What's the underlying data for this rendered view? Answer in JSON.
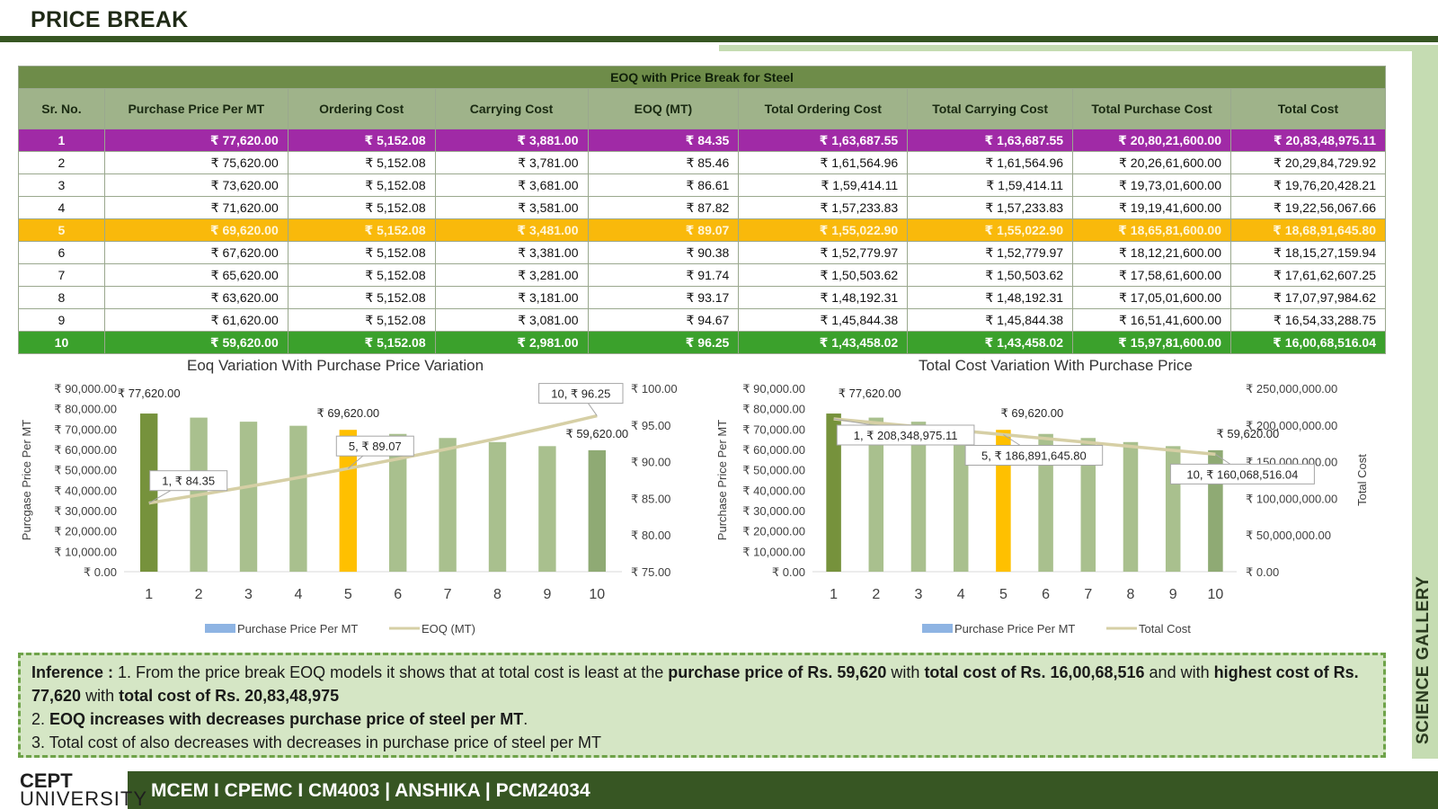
{
  "page": {
    "title": "PRICE BREAK",
    "side_label": "SCIENCE GALLERY",
    "footer": {
      "logo_line1": "CEPT",
      "logo_line2": "UNIVERSITY",
      "text": "MCEM I CPEMC I CM4003 | ANSHIKA | PCM24034"
    }
  },
  "table": {
    "caption": "EOQ with Price Break for Steel",
    "headers": [
      "Sr. No.",
      "Purchase Price Per MT",
      "Ordering Cost",
      "Carrying Cost",
      "EOQ (MT)",
      "Total Ordering Cost",
      "Total Carrying Cost",
      "Total Purchase Cost",
      "Total Cost"
    ],
    "rows": [
      {
        "highlight": "purple",
        "cells": [
          "1",
          "₹ 77,620.00",
          "₹ 5,152.08",
          "₹ 3,881.00",
          "₹ 84.35",
          "₹ 1,63,687.55",
          "₹ 1,63,687.55",
          "₹ 20,80,21,600.00",
          "₹ 20,83,48,975.11"
        ]
      },
      {
        "highlight": "",
        "cells": [
          "2",
          "₹ 75,620.00",
          "₹ 5,152.08",
          "₹ 3,781.00",
          "₹ 85.46",
          "₹ 1,61,564.96",
          "₹ 1,61,564.96",
          "₹ 20,26,61,600.00",
          "₹ 20,29,84,729.92"
        ]
      },
      {
        "highlight": "",
        "cells": [
          "3",
          "₹ 73,620.00",
          "₹ 5,152.08",
          "₹ 3,681.00",
          "₹ 86.61",
          "₹ 1,59,414.11",
          "₹ 1,59,414.11",
          "₹ 19,73,01,600.00",
          "₹ 19,76,20,428.21"
        ]
      },
      {
        "highlight": "",
        "cells": [
          "4",
          "₹ 71,620.00",
          "₹ 5,152.08",
          "₹ 3,581.00",
          "₹ 87.82",
          "₹ 1,57,233.83",
          "₹ 1,57,233.83",
          "₹ 19,19,41,600.00",
          "₹ 19,22,56,067.66"
        ]
      },
      {
        "highlight": "orange",
        "cells": [
          "5",
          "₹ 69,620.00",
          "₹ 5,152.08",
          "₹ 3,481.00",
          "₹ 89.07",
          "₹ 1,55,022.90",
          "₹ 1,55,022.90",
          "₹ 18,65,81,600.00",
          "₹ 18,68,91,645.80"
        ]
      },
      {
        "highlight": "",
        "cells": [
          "6",
          "₹ 67,620.00",
          "₹ 5,152.08",
          "₹ 3,381.00",
          "₹ 90.38",
          "₹ 1,52,779.97",
          "₹ 1,52,779.97",
          "₹ 18,12,21,600.00",
          "₹ 18,15,27,159.94"
        ]
      },
      {
        "highlight": "",
        "cells": [
          "7",
          "₹ 65,620.00",
          "₹ 5,152.08",
          "₹ 3,281.00",
          "₹ 91.74",
          "₹ 1,50,503.62",
          "₹ 1,50,503.62",
          "₹ 17,58,61,600.00",
          "₹ 17,61,62,607.25"
        ]
      },
      {
        "highlight": "",
        "cells": [
          "8",
          "₹ 63,620.00",
          "₹ 5,152.08",
          "₹ 3,181.00",
          "₹ 93.17",
          "₹ 1,48,192.31",
          "₹ 1,48,192.31",
          "₹ 17,05,01,600.00",
          "₹ 17,07,97,984.62"
        ]
      },
      {
        "highlight": "",
        "cells": [
          "9",
          "₹ 61,620.00",
          "₹ 5,152.08",
          "₹ 3,081.00",
          "₹ 94.67",
          "₹ 1,45,844.38",
          "₹ 1,45,844.38",
          "₹ 16,51,41,600.00",
          "₹ 16,54,33,288.75"
        ]
      },
      {
        "highlight": "green",
        "cells": [
          "10",
          "₹ 59,620.00",
          "₹ 5,152.08",
          "₹ 2,981.00",
          "₹ 96.25",
          "₹ 1,43,458.02",
          "₹ 1,43,458.02",
          "₹ 15,97,81,600.00",
          "₹ 16,00,68,516.04"
        ]
      }
    ]
  },
  "chart_data": [
    {
      "type": "bar",
      "title": "Eoq Variation With Purchase Price Variation",
      "categories": [
        "1",
        "2",
        "3",
        "4",
        "5",
        "6",
        "7",
        "8",
        "9",
        "10"
      ],
      "bar_colors": [
        "#76923c",
        "#a9c08e",
        "#a9c08e",
        "#a9c08e",
        "#ffc000",
        "#a9c08e",
        "#a9c08e",
        "#a9c08e",
        "#a9c08e",
        "#8faa74"
      ],
      "line_color": "#d6cfa5",
      "series": [
        {
          "name": "Purchase Price Per MT",
          "axis": "left",
          "kind": "bar",
          "legend_color": "#8eb4e3",
          "values": [
            77620,
            75620,
            73620,
            71620,
            69620,
            67620,
            65620,
            63620,
            61620,
            59620
          ]
        },
        {
          "name": "EOQ (MT)",
          "axis": "right",
          "kind": "line",
          "legend_color": "#d6cfa5",
          "values": [
            84.35,
            85.46,
            86.61,
            87.82,
            89.07,
            90.38,
            91.74,
            93.17,
            94.67,
            96.25
          ]
        }
      ],
      "left_axis": {
        "label": "Purcgase Price Per MT",
        "ylim": [
          0,
          90000
        ],
        "ticks": [
          "₹ 0.00",
          "₹ 10,000.00",
          "₹ 20,000.00",
          "₹ 30,000.00",
          "₹ 40,000.00",
          "₹ 50,000.00",
          "₹ 60,000.00",
          "₹ 70,000.00",
          "₹ 80,000.00",
          "₹ 90,000.00"
        ]
      },
      "right_axis": {
        "label": "",
        "ylim": [
          75,
          100
        ],
        "ticks": [
          "₹ 75.00",
          "₹ 80.00",
          "₹ 85.00",
          "₹ 90.00",
          "₹ 95.00",
          "₹ 100.00"
        ]
      },
      "annotations": [
        {
          "index": 0,
          "series": "bar",
          "text": "₹ 77,620.00",
          "boxed": false
        },
        {
          "index": 4,
          "series": "bar",
          "text": "₹ 69,620.00",
          "boxed": false
        },
        {
          "index": 9,
          "series": "bar",
          "text": "₹ 59,620.00",
          "boxed": false
        },
        {
          "index": 0,
          "series": "line",
          "text": "1, ₹ 84.35",
          "boxed": true
        },
        {
          "index": 4,
          "series": "line",
          "text": "5, ₹ 89.07",
          "boxed": true
        },
        {
          "index": 9,
          "series": "line",
          "text": "10, ₹ 96.25",
          "boxed": true
        }
      ],
      "legend": "bottom"
    },
    {
      "type": "bar",
      "title": "Total Cost Variation With Purchase Price",
      "categories": [
        "1",
        "2",
        "3",
        "4",
        "5",
        "6",
        "7",
        "8",
        "9",
        "10"
      ],
      "bar_colors": [
        "#76923c",
        "#a9c08e",
        "#a9c08e",
        "#a9c08e",
        "#ffc000",
        "#a9c08e",
        "#a9c08e",
        "#a9c08e",
        "#a9c08e",
        "#8faa74"
      ],
      "line_color": "#d6cfa5",
      "series": [
        {
          "name": "Purchase Price Per MT",
          "axis": "left",
          "kind": "bar",
          "legend_color": "#8eb4e3",
          "values": [
            77620,
            75620,
            73620,
            71620,
            69620,
            67620,
            65620,
            63620,
            61620,
            59620
          ]
        },
        {
          "name": "Total Cost",
          "axis": "right",
          "kind": "line",
          "legend_color": "#d6cfa5",
          "values": [
            208348975.11,
            202984729.92,
            197620428.21,
            192256067.66,
            186891645.8,
            181527159.94,
            176162607.25,
            170797984.62,
            165433288.75,
            160068516.04
          ]
        }
      ],
      "left_axis": {
        "label": "Purchase Price Per MT",
        "ylim": [
          0,
          90000
        ],
        "ticks": [
          "₹ 0.00",
          "₹ 10,000.00",
          "₹ 20,000.00",
          "₹ 30,000.00",
          "₹ 40,000.00",
          "₹ 50,000.00",
          "₹ 60,000.00",
          "₹ 70,000.00",
          "₹ 80,000.00",
          "₹ 90,000.00"
        ]
      },
      "right_axis": {
        "label": "Total Cost",
        "ylim": [
          0,
          250000000
        ],
        "ticks": [
          "₹ 0.00",
          "₹ 50,000,000.00",
          "₹ 100,000,000.00",
          "₹ 150,000,000.00",
          "₹ 200,000,000.00",
          "₹ 250,000,000.00"
        ]
      },
      "annotations": [
        {
          "index": 0,
          "series": "bar",
          "text": "₹ 77,620.00",
          "boxed": false
        },
        {
          "index": 4,
          "series": "bar",
          "text": "₹ 69,620.00",
          "boxed": false
        },
        {
          "index": 9,
          "series": "bar",
          "text": "₹ 59,620.00",
          "boxed": false
        },
        {
          "index": 0,
          "series": "line",
          "text": "1, ₹ 208,348,975.11",
          "boxed": true
        },
        {
          "index": 4,
          "series": "line",
          "text": "5, ₹ 186,891,645.80",
          "boxed": true
        },
        {
          "index": 9,
          "series": "line",
          "text": "10, ₹ 160,068,516.04",
          "boxed": true
        }
      ],
      "legend": "bottom"
    }
  ],
  "inference": {
    "lines": [
      [
        {
          "t": "Inference : ",
          "b": true
        },
        {
          "t": "1. From the price break EOQ models it shows that at total cost is least at the ",
          "b": false
        },
        {
          "t": "purchase price of Rs. 59,620",
          "b": true
        },
        {
          "t": " with ",
          "b": false
        },
        {
          "t": "total cost of Rs. 16,00,68,516",
          "b": true
        },
        {
          "t": " and with ",
          "b": false
        },
        {
          "t": "highest cost of Rs. 77,620",
          "b": true
        },
        {
          "t": " with ",
          "b": false
        },
        {
          "t": "total cost of Rs. 20,83,48,975",
          "b": true
        }
      ],
      [
        {
          "t": "2. ",
          "b": false
        },
        {
          "t": "EOQ increases with decreases purchase  price of steel per MT",
          "b": true
        },
        {
          "t": ".",
          "b": false
        }
      ],
      [
        {
          "t": "3. Total cost of also decreases with decreases in purchase price of steel per MT",
          "b": false
        }
      ]
    ]
  }
}
